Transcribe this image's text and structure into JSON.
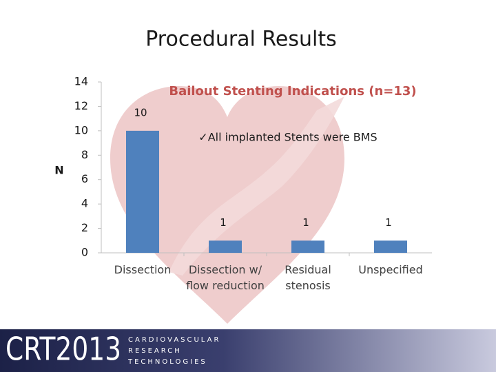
{
  "slide_title": "Procedural Results",
  "chart_data": {
    "type": "bar",
    "title": "Bailout Stenting Indications (n=13)",
    "annotation": "✓All implanted Stents were BMS",
    "y_label": "N",
    "categories": [
      "Dissection",
      "Dissection w/ flow reduction",
      "Residual stenosis",
      "Unspecified"
    ],
    "values": [
      10,
      1,
      1,
      1
    ],
    "color": "#4f81bd",
    "ylim": [
      0,
      14
    ],
    "yticks": [
      0,
      2,
      4,
      6,
      8,
      10,
      12,
      14
    ],
    "grid": false
  },
  "footer": {
    "logo": "CRT2013",
    "lines": [
      "CARDIOVASCULAR",
      "RESEARCH",
      "TECHNOLOGIES"
    ]
  }
}
